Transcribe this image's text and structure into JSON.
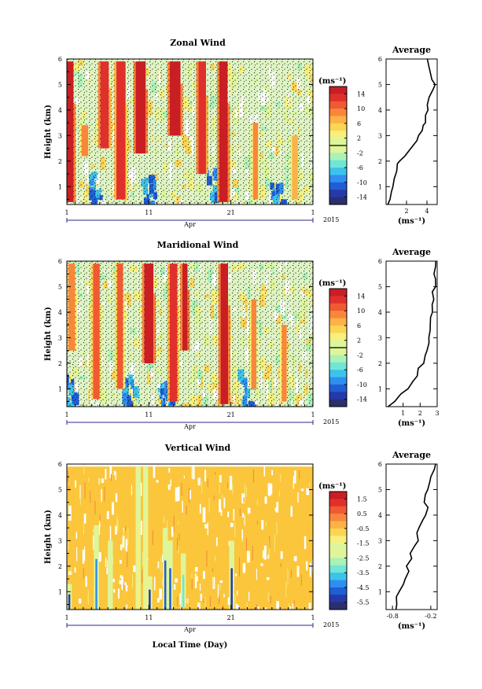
{
  "figure": {
    "month": "Apr",
    "year": "2015",
    "xlabel": "Local Time (Day)",
    "ylabel": "Height (km)",
    "colorbar_unit": "(ms⁻¹)",
    "profile_title": "Average",
    "profile_xlabel": "(ms⁻¹)"
  },
  "chart_data": [
    {
      "type": "heatmap",
      "title": "Zonal Wind",
      "xlabel": "",
      "ylabel": "Height (km)",
      "x_ticks": [
        "1",
        "11",
        "21",
        "1"
      ],
      "y_ticks": [
        1,
        2,
        3,
        4,
        5,
        6
      ],
      "ylim": [
        0.3,
        6.0
      ],
      "colorbar": {
        "ticks": [
          14,
          10,
          6,
          2,
          -2,
          -6,
          -10,
          -14
        ],
        "range": [
          -16,
          16
        ],
        "zero_line": true
      },
      "bands": [
        {
          "day": 1.2,
          "w": 1.2,
          "lo": 0.4,
          "hi": 5.9,
          "lvl": 1.0
        },
        {
          "day": 3.2,
          "w": 0.8,
          "lo": 2.2,
          "hi": 3.4,
          "lvl": 0.78
        },
        {
          "day": 5.6,
          "w": 1.0,
          "lo": 2.5,
          "hi": 5.9,
          "lvl": 0.95
        },
        {
          "day": 7.6,
          "w": 1.1,
          "lo": 0.5,
          "hi": 5.9,
          "lvl": 0.9
        },
        {
          "day": 10.0,
          "w": 1.2,
          "lo": 2.3,
          "hi": 5.9,
          "lvl": 1.0
        },
        {
          "day": 14.2,
          "w": 1.3,
          "lo": 3.0,
          "hi": 5.9,
          "lvl": 1.0
        },
        {
          "day": 17.5,
          "w": 0.9,
          "lo": 1.5,
          "hi": 5.9,
          "lvl": 0.95
        },
        {
          "day": 20.1,
          "w": 1.0,
          "lo": 0.4,
          "hi": 5.9,
          "lvl": 1.0
        },
        {
          "day": 24.0,
          "w": 0.6,
          "lo": 0.5,
          "hi": 3.5,
          "lvl": 0.75
        },
        {
          "day": 28.8,
          "w": 0.7,
          "lo": 0.5,
          "hi": 3.0,
          "lvl": 0.72
        }
      ],
      "negative_bands": [
        {
          "day": 4.3,
          "lo": 0.6,
          "hi": 1.6
        },
        {
          "day": 10.8,
          "lo": 0.4,
          "hi": 1.5
        },
        {
          "day": 18.8,
          "lo": 0.6,
          "hi": 1.8
        },
        {
          "day": 26.5,
          "lo": 0.4,
          "hi": 1.2
        }
      ],
      "average_profile": {
        "xlim": [
          0,
          5
        ],
        "x_ticks": [
          2,
          4
        ],
        "height": [
          0.3,
          0.5,
          0.8,
          1.0,
          1.3,
          1.6,
          1.9,
          2.0,
          2.2,
          2.5,
          2.8,
          3.0,
          3.2,
          3.4,
          3.5,
          3.8,
          4.0,
          4.2,
          4.5,
          4.8,
          5.0,
          5.2,
          5.5,
          5.8,
          6.0
        ],
        "value": [
          0.2,
          0.4,
          0.5,
          0.7,
          0.8,
          1.0,
          1.1,
          1.3,
          1.8,
          2.4,
          3.0,
          3.2,
          3.5,
          3.6,
          3.9,
          3.9,
          4.1,
          4.0,
          4.2,
          4.6,
          4.8,
          4.5,
          4.3,
          4.1,
          4.0
        ]
      }
    },
    {
      "type": "heatmap",
      "title": "Maridional Wind",
      "xlabel": "",
      "ylabel": "Height (km)",
      "x_ticks": [
        "1",
        "11",
        "21",
        "1"
      ],
      "y_ticks": [
        1,
        2,
        3,
        4,
        5,
        6
      ],
      "ylim": [
        0.3,
        6.0
      ],
      "colorbar": {
        "ticks": [
          14,
          10,
          6,
          2,
          -2,
          -6,
          -10,
          -14
        ],
        "range": [
          -16,
          16
        ],
        "zero_line": true
      },
      "bands": [
        {
          "day": 1.6,
          "w": 0.8,
          "lo": 2.5,
          "hi": 5.9,
          "lvl": 0.8
        },
        {
          "day": 4.6,
          "w": 0.8,
          "lo": 0.6,
          "hi": 5.9,
          "lvl": 0.85
        },
        {
          "day": 7.5,
          "w": 0.7,
          "lo": 1.0,
          "hi": 5.9,
          "lvl": 0.85
        },
        {
          "day": 11.0,
          "w": 1.1,
          "lo": 2.0,
          "hi": 5.9,
          "lvl": 1.0
        },
        {
          "day": 14.0,
          "w": 0.9,
          "lo": 0.5,
          "hi": 5.9,
          "lvl": 0.9
        },
        {
          "day": 15.4,
          "w": 0.6,
          "lo": 2.5,
          "hi": 5.9,
          "lvl": 1.0
        },
        {
          "day": 20.2,
          "w": 0.9,
          "lo": 0.4,
          "hi": 5.9,
          "lvl": 1.0
        },
        {
          "day": 23.8,
          "w": 0.6,
          "lo": 1.0,
          "hi": 4.5,
          "lvl": 0.78
        },
        {
          "day": 27.5,
          "w": 0.6,
          "lo": 0.5,
          "hi": 3.5,
          "lvl": 0.75
        }
      ],
      "negative_bands": [
        {
          "day": 1.0,
          "lo": 0.4,
          "hi": 1.8
        },
        {
          "day": 8.3,
          "lo": 0.4,
          "hi": 1.6
        },
        {
          "day": 12.8,
          "lo": 0.4,
          "hi": 1.3
        },
        {
          "day": 22.6,
          "lo": 0.4,
          "hi": 1.9
        }
      ],
      "average_profile": {
        "xlim": [
          0,
          3
        ],
        "x_ticks": [
          1,
          2,
          3
        ],
        "height": [
          0.3,
          0.5,
          0.8,
          1.0,
          1.3,
          1.5,
          1.8,
          2.0,
          2.3,
          2.5,
          2.8,
          3.0,
          3.3,
          3.5,
          3.8,
          4.0,
          4.3,
          4.5,
          4.8,
          5.0,
          5.3,
          5.5,
          5.8,
          6.0
        ],
        "value": [
          0.1,
          0.5,
          0.9,
          1.3,
          1.6,
          1.8,
          1.9,
          2.2,
          2.3,
          2.4,
          2.5,
          2.5,
          2.6,
          2.6,
          2.6,
          2.7,
          2.7,
          2.8,
          2.7,
          2.9,
          2.9,
          2.8,
          2.9,
          2.9
        ]
      }
    },
    {
      "type": "heatmap",
      "title": "Vertical Wind",
      "xlabel": "Local Time (Day)",
      "ylabel": "Height (km)",
      "x_ticks": [
        "1",
        "11",
        "21",
        "1"
      ],
      "y_ticks": [
        1,
        2,
        3,
        4,
        5,
        6
      ],
      "ylim": [
        0.3,
        6.0
      ],
      "colorbar": {
        "ticks": [
          1.5,
          0.5,
          -0.5,
          -1.5,
          -2.5,
          -3.5,
          -4.5,
          -5.5
        ],
        "range": [
          -6,
          2
        ],
        "zero_line": false
      },
      "streaks": [
        {
          "day": 1.3,
          "lo": 0.3,
          "hi": 1.3,
          "lvl": 0.1
        },
        {
          "day": 4.6,
          "lo": 0.3,
          "hi": 3.6,
          "lvl": 0.2
        },
        {
          "day": 6.3,
          "lo": 0.3,
          "hi": 3.0,
          "lvl": 0.5
        },
        {
          "day": 9.7,
          "lo": 0.3,
          "hi": 5.9,
          "lvl": 0.55
        },
        {
          "day": 10.6,
          "lo": 0.3,
          "hi": 5.9,
          "lvl": 0.6
        },
        {
          "day": 11.1,
          "lo": 0.3,
          "hi": 1.6,
          "lvl": 0.05
        },
        {
          "day": 13.0,
          "lo": 0.3,
          "hi": 3.5,
          "lvl": 0.15
        },
        {
          "day": 13.6,
          "lo": 0.3,
          "hi": 3.0,
          "lvl": 0.12
        },
        {
          "day": 15.2,
          "lo": 0.4,
          "hi": 2.5,
          "lvl": 0.35
        },
        {
          "day": 21.1,
          "lo": 0.3,
          "hi": 3.0,
          "lvl": 0.08
        }
      ],
      "average_profile": {
        "xlim": [
          -0.9,
          -0.1
        ],
        "x_ticks": [
          -0.8,
          -0.2
        ],
        "height": [
          0.3,
          0.5,
          0.8,
          1.0,
          1.3,
          1.5,
          1.8,
          2.0,
          2.3,
          2.5,
          2.8,
          3.0,
          3.3,
          3.5,
          3.8,
          4.0,
          4.3,
          4.5,
          4.8,
          5.0,
          5.3,
          5.5,
          5.8,
          6.0
        ],
        "value": [
          -0.75,
          -0.73,
          -0.74,
          -0.7,
          -0.62,
          -0.6,
          -0.55,
          -0.58,
          -0.5,
          -0.52,
          -0.45,
          -0.4,
          -0.42,
          -0.38,
          -0.33,
          -0.28,
          -0.25,
          -0.3,
          -0.28,
          -0.25,
          -0.22,
          -0.2,
          -0.15,
          -0.12
        ]
      }
    }
  ]
}
